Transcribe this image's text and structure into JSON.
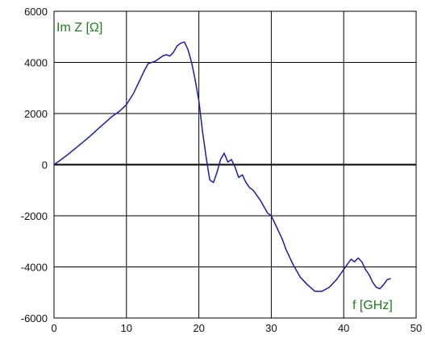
{
  "chart_data": {
    "type": "line",
    "y_annotation": "Im Z [Ω]",
    "x_annotation": "f [GHz]",
    "xlim": [
      0,
      50
    ],
    "ylim": [
      -6000,
      6000
    ],
    "x_ticks": [
      0,
      10,
      20,
      30,
      40,
      50
    ],
    "y_ticks": [
      -6000,
      -4000,
      -2000,
      0,
      2000,
      4000,
      6000
    ],
    "grid": true,
    "colors": {
      "series": "#1a1ab8",
      "annotation": "#1e7d1e",
      "grid": "#000000"
    },
    "series": [
      {
        "x": [
          0,
          1,
          2,
          3,
          4,
          5,
          6,
          7,
          8,
          9,
          10,
          11,
          12,
          12.5,
          13,
          14,
          15,
          15.5,
          16,
          16.5,
          17,
          17.5,
          18,
          18.5,
          19,
          19.5,
          20,
          20.5,
          21,
          21.5,
          22,
          22.5,
          23,
          23.5,
          24,
          24.5,
          25,
          25.5,
          26,
          26.5,
          27,
          27.5,
          28,
          28.5,
          29,
          29.5,
          30,
          30.5,
          31,
          31.5,
          32,
          33,
          34,
          35,
          36,
          37,
          38,
          39,
          40,
          40.5,
          41,
          41.5,
          42,
          42.5,
          43,
          43.5,
          44,
          44.5,
          45,
          45.5,
          46,
          46.5
        ],
        "values": [
          0,
          200,
          420,
          650,
          880,
          1120,
          1380,
          1630,
          1880,
          2080,
          2350,
          2800,
          3400,
          3700,
          3950,
          4050,
          4250,
          4300,
          4250,
          4400,
          4650,
          4750,
          4800,
          4500,
          4000,
          3300,
          2500,
          1300,
          300,
          -600,
          -700,
          -300,
          200,
          450,
          100,
          200,
          -100,
          -500,
          -400,
          -700,
          -900,
          -1000,
          -1200,
          -1400,
          -1650,
          -1900,
          -2000,
          -2300,
          -2600,
          -2900,
          -3300,
          -3900,
          -4400,
          -4700,
          -4950,
          -4950,
          -4800,
          -4500,
          -4100,
          -3900,
          -3700,
          -3800,
          -3650,
          -3800,
          -4100,
          -4300,
          -4600,
          -4800,
          -4850,
          -4700,
          -4500,
          -4450
        ],
        "name": ""
      }
    ]
  }
}
